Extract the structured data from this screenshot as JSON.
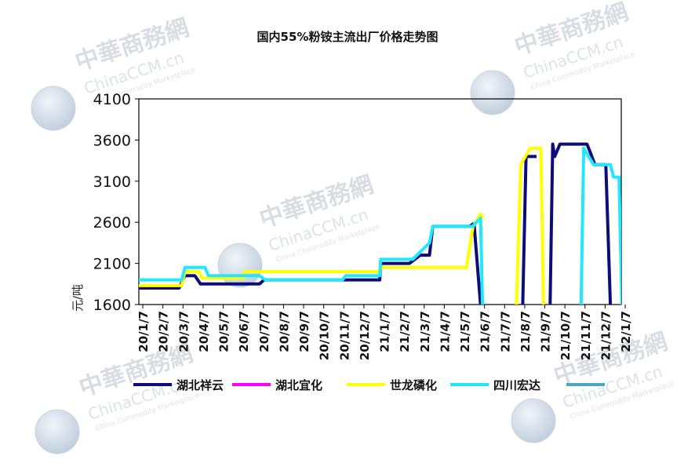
{
  "watermark": {
    "brand_cn": "中華商務網",
    "brand_en": "ChinaCCM.cn",
    "tagline": "China Commodity Marketplace"
  },
  "chart_data": {
    "type": "line",
    "title": "国内55%粉铵主流出厂价格走势图",
    "ylabel": "元/吨",
    "xlabel": "",
    "ylim": [
      1600,
      4100
    ],
    "yticks": [
      1600,
      2100,
      2600,
      3100,
      3600,
      4100
    ],
    "x_unit": "month",
    "xlim": [
      "20/1",
      "22/1"
    ],
    "xticks": [
      "20/1/7",
      "20/2/7",
      "20/3/7",
      "20/4/7",
      "20/5/7",
      "20/6/7",
      "20/7/7",
      "20/8/7",
      "20/9/7",
      "20/10/7",
      "20/11/7",
      "20/12/7",
      "21/1/7",
      "21/2/7",
      "21/3/7",
      "21/4/7",
      "21/5/7",
      "21/6/7",
      "21/7/7",
      "21/8/7",
      "21/9/7",
      "21/10/7",
      "21/11/7",
      "21/12/7",
      "22/1/7"
    ],
    "grid": false,
    "legend_position": "bottom",
    "series": [
      {
        "name": "湖北祥云",
        "color": "#0d0d7a",
        "segments": [
          [
            [
              "20/1/1",
              1800
            ],
            [
              "20/3/1",
              1800
            ],
            [
              "20/3/10",
              1950
            ],
            [
              "20/3/25",
              1950
            ],
            [
              "20/4/3",
              1850
            ],
            [
              "20/5/1",
              1850
            ],
            [
              "20/7/1",
              1850
            ],
            [
              "20/7/8",
              1900
            ],
            [
              "20/12/31",
              1900
            ],
            [
              "21/1/2",
              2100
            ],
            [
              "21/2/15",
              2100
            ],
            [
              "21/3/1",
              2200
            ],
            [
              "21/3/15",
              2200
            ],
            [
              "21/3/20",
              2550
            ],
            [
              "21/5/15",
              2550
            ],
            [
              "21/5/20",
              2580
            ],
            [
              "21/5/22",
              2550
            ],
            [
              "21/6/1",
              1600
            ]
          ],
          [
            [
              "21/8/4",
              1600
            ],
            [
              "21/8/9",
              3400
            ],
            [
              "21/8/25",
              3400
            ]
          ],
          [
            [
              "21/9/15",
              1600
            ],
            [
              "21/9/19",
              3550
            ],
            [
              "21/9/22",
              3400
            ],
            [
              "21/9/30",
              3550
            ],
            [
              "21/11/10",
              3550
            ],
            [
              "21/11/15",
              3450
            ],
            [
              "21/11/22",
              3300
            ],
            [
              "21/12/8",
              3300
            ],
            [
              "21/12/15",
              1600
            ]
          ]
        ]
      },
      {
        "name": "湖北宜化",
        "color": "#ff00ff",
        "segments": []
      },
      {
        "name": "世龙磷化",
        "color": "#ffff00",
        "segments": [
          [
            [
              "20/1/1",
              1830
            ],
            [
              "20/3/5",
              1830
            ],
            [
              "20/3/10",
              2000
            ],
            [
              "20/4/1",
              2000
            ],
            [
              "20/4/5",
              1920
            ],
            [
              "20/5/1",
              1920
            ],
            [
              "20/6/7",
              1920
            ],
            [
              "20/6/9",
              2000
            ],
            [
              "20/12/31",
              2000
            ],
            [
              "21/1/2",
              2050
            ],
            [
              "21/5/10",
              2050
            ],
            [
              "21/5/20",
              2550
            ],
            [
              "21/6/1",
              2700
            ],
            [
              "21/6/5",
              2650
            ]
          ],
          [
            [
              "21/7/25",
              1600
            ],
            [
              "21/8/1",
              3300
            ],
            [
              "21/8/15",
              3500
            ],
            [
              "21/9/1",
              3500
            ],
            [
              "21/9/5",
              1600
            ]
          ]
        ]
      },
      {
        "name": "四川宏达",
        "color": "#22e8ff",
        "segments": [
          [
            [
              "20/1/1",
              1900
            ],
            [
              "20/3/5",
              1900
            ],
            [
              "20/3/10",
              2050
            ],
            [
              "20/4/10",
              2050
            ],
            [
              "20/4/15",
              1950
            ],
            [
              "20/7/1",
              1950
            ],
            [
              "20/7/10",
              1900
            ],
            [
              "20/11/5",
              1900
            ],
            [
              "20/11/10",
              1950
            ],
            [
              "20/12/31",
              1950
            ],
            [
              "21/1/2",
              2150
            ],
            [
              "21/2/20",
              2150
            ],
            [
              "21/3/15",
              2350
            ],
            [
              "21/3/20",
              2550
            ],
            [
              "21/5/20",
              2550
            ],
            [
              "21/5/25",
              2600
            ],
            [
              "21/6/1",
              2650
            ],
            [
              "21/6/4",
              1600
            ]
          ],
          [
            [
              "21/11/1",
              1600
            ],
            [
              "21/11/5",
              3500
            ],
            [
              "21/11/20",
              3300
            ],
            [
              "21/12/15",
              3300
            ],
            [
              "21/12/20",
              3150
            ],
            [
              "21/12/28",
              3150
            ],
            [
              "22/1/2",
              1600
            ]
          ]
        ]
      },
      {
        "name": "",
        "color": "#4aa6c8",
        "segments": []
      }
    ]
  }
}
